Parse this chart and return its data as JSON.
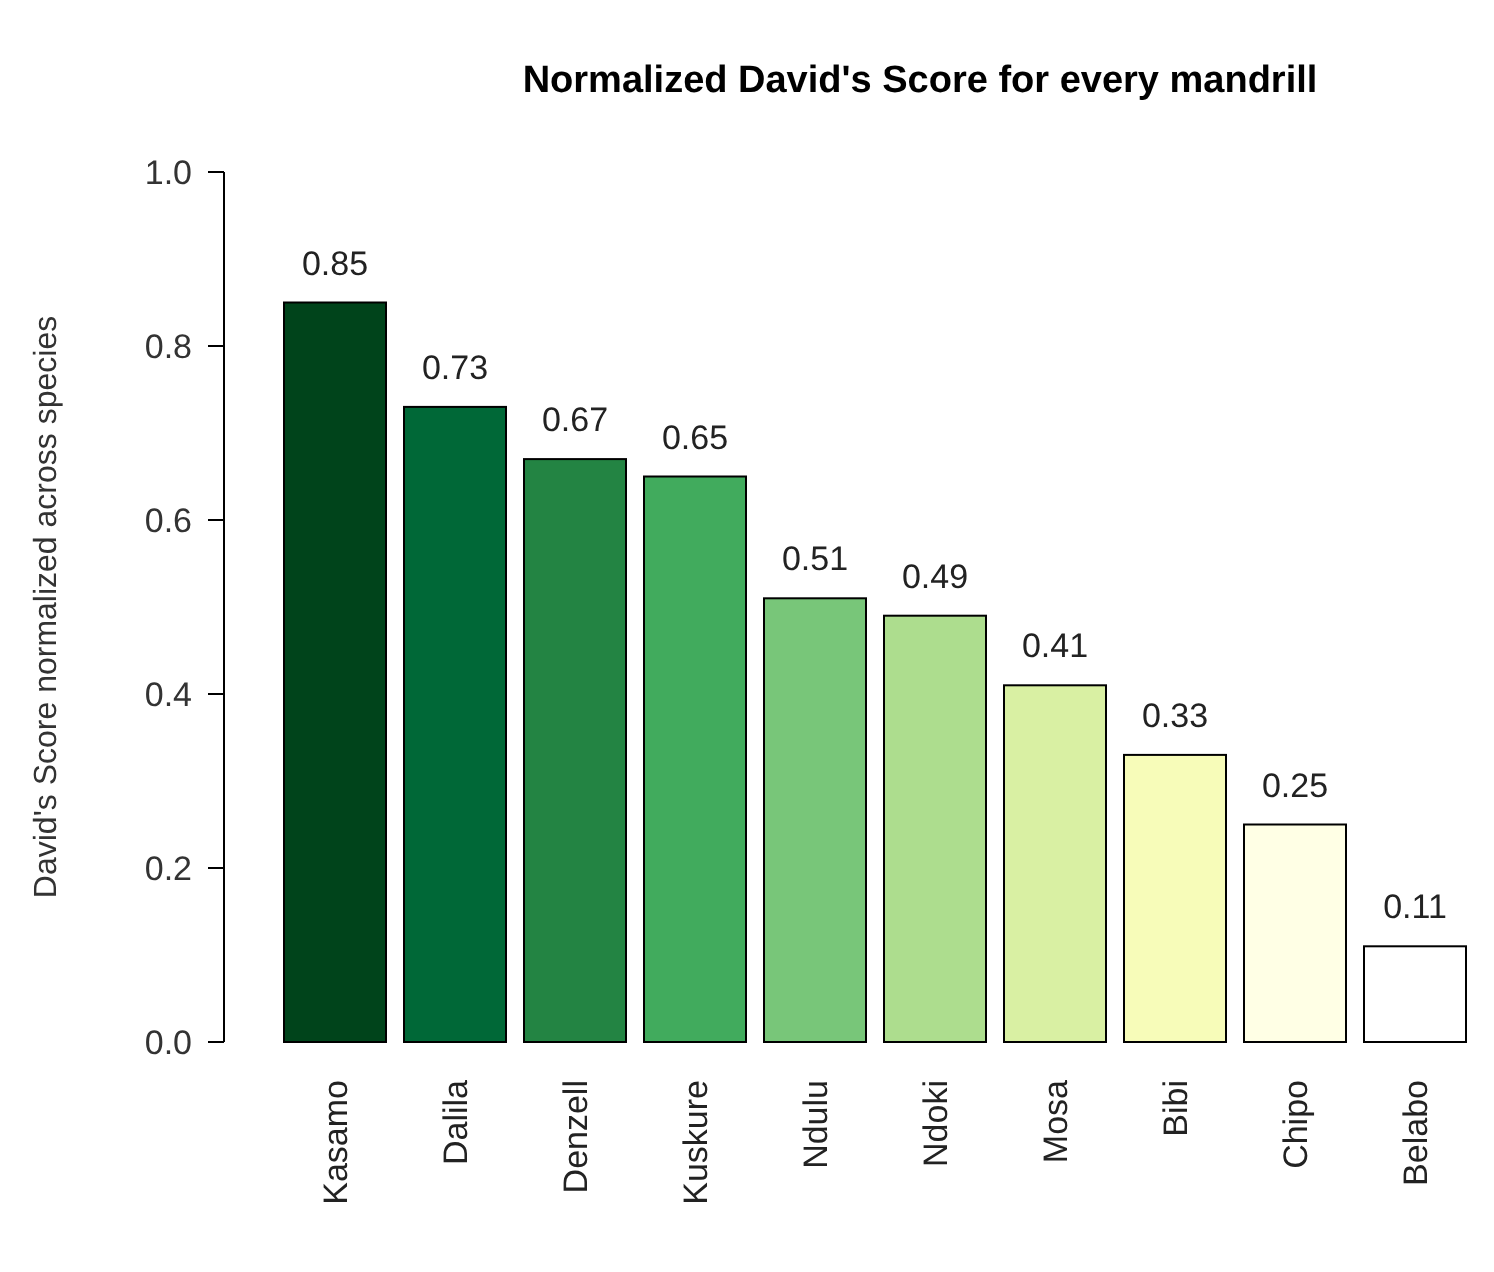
{
  "chart_data": {
    "type": "bar",
    "title": "Normalized David's Score for every mandrill",
    "ylabel": "David's Score normalized across species",
    "categories": [
      "Kasamo",
      "Dalila",
      "Denzell",
      "Kuskure",
      "Ndulu",
      "Ndoki",
      "Mosa",
      "Bibi",
      "Chipo",
      "Belabo"
    ],
    "values": [
      0.85,
      0.73,
      0.67,
      0.65,
      0.51,
      0.49,
      0.41,
      0.33,
      0.25,
      0.11
    ],
    "colors": [
      "#00441b",
      "#006837",
      "#238443",
      "#41ab5d",
      "#78c679",
      "#addd8e",
      "#d9f0a3",
      "#f7fcb9",
      "#ffffe5",
      "#ffffff"
    ],
    "ylim": [
      0,
      1
    ],
    "yticks": [
      {
        "value": 0,
        "label": "0.0"
      },
      {
        "value": 0.2,
        "label": "0.2"
      },
      {
        "value": 0.4,
        "label": "0.4"
      },
      {
        "value": 0.6,
        "label": "0.6"
      },
      {
        "value": 0.8,
        "label": "0.8"
      },
      {
        "value": 1,
        "label": "1.0"
      }
    ],
    "data_labels": true
  }
}
